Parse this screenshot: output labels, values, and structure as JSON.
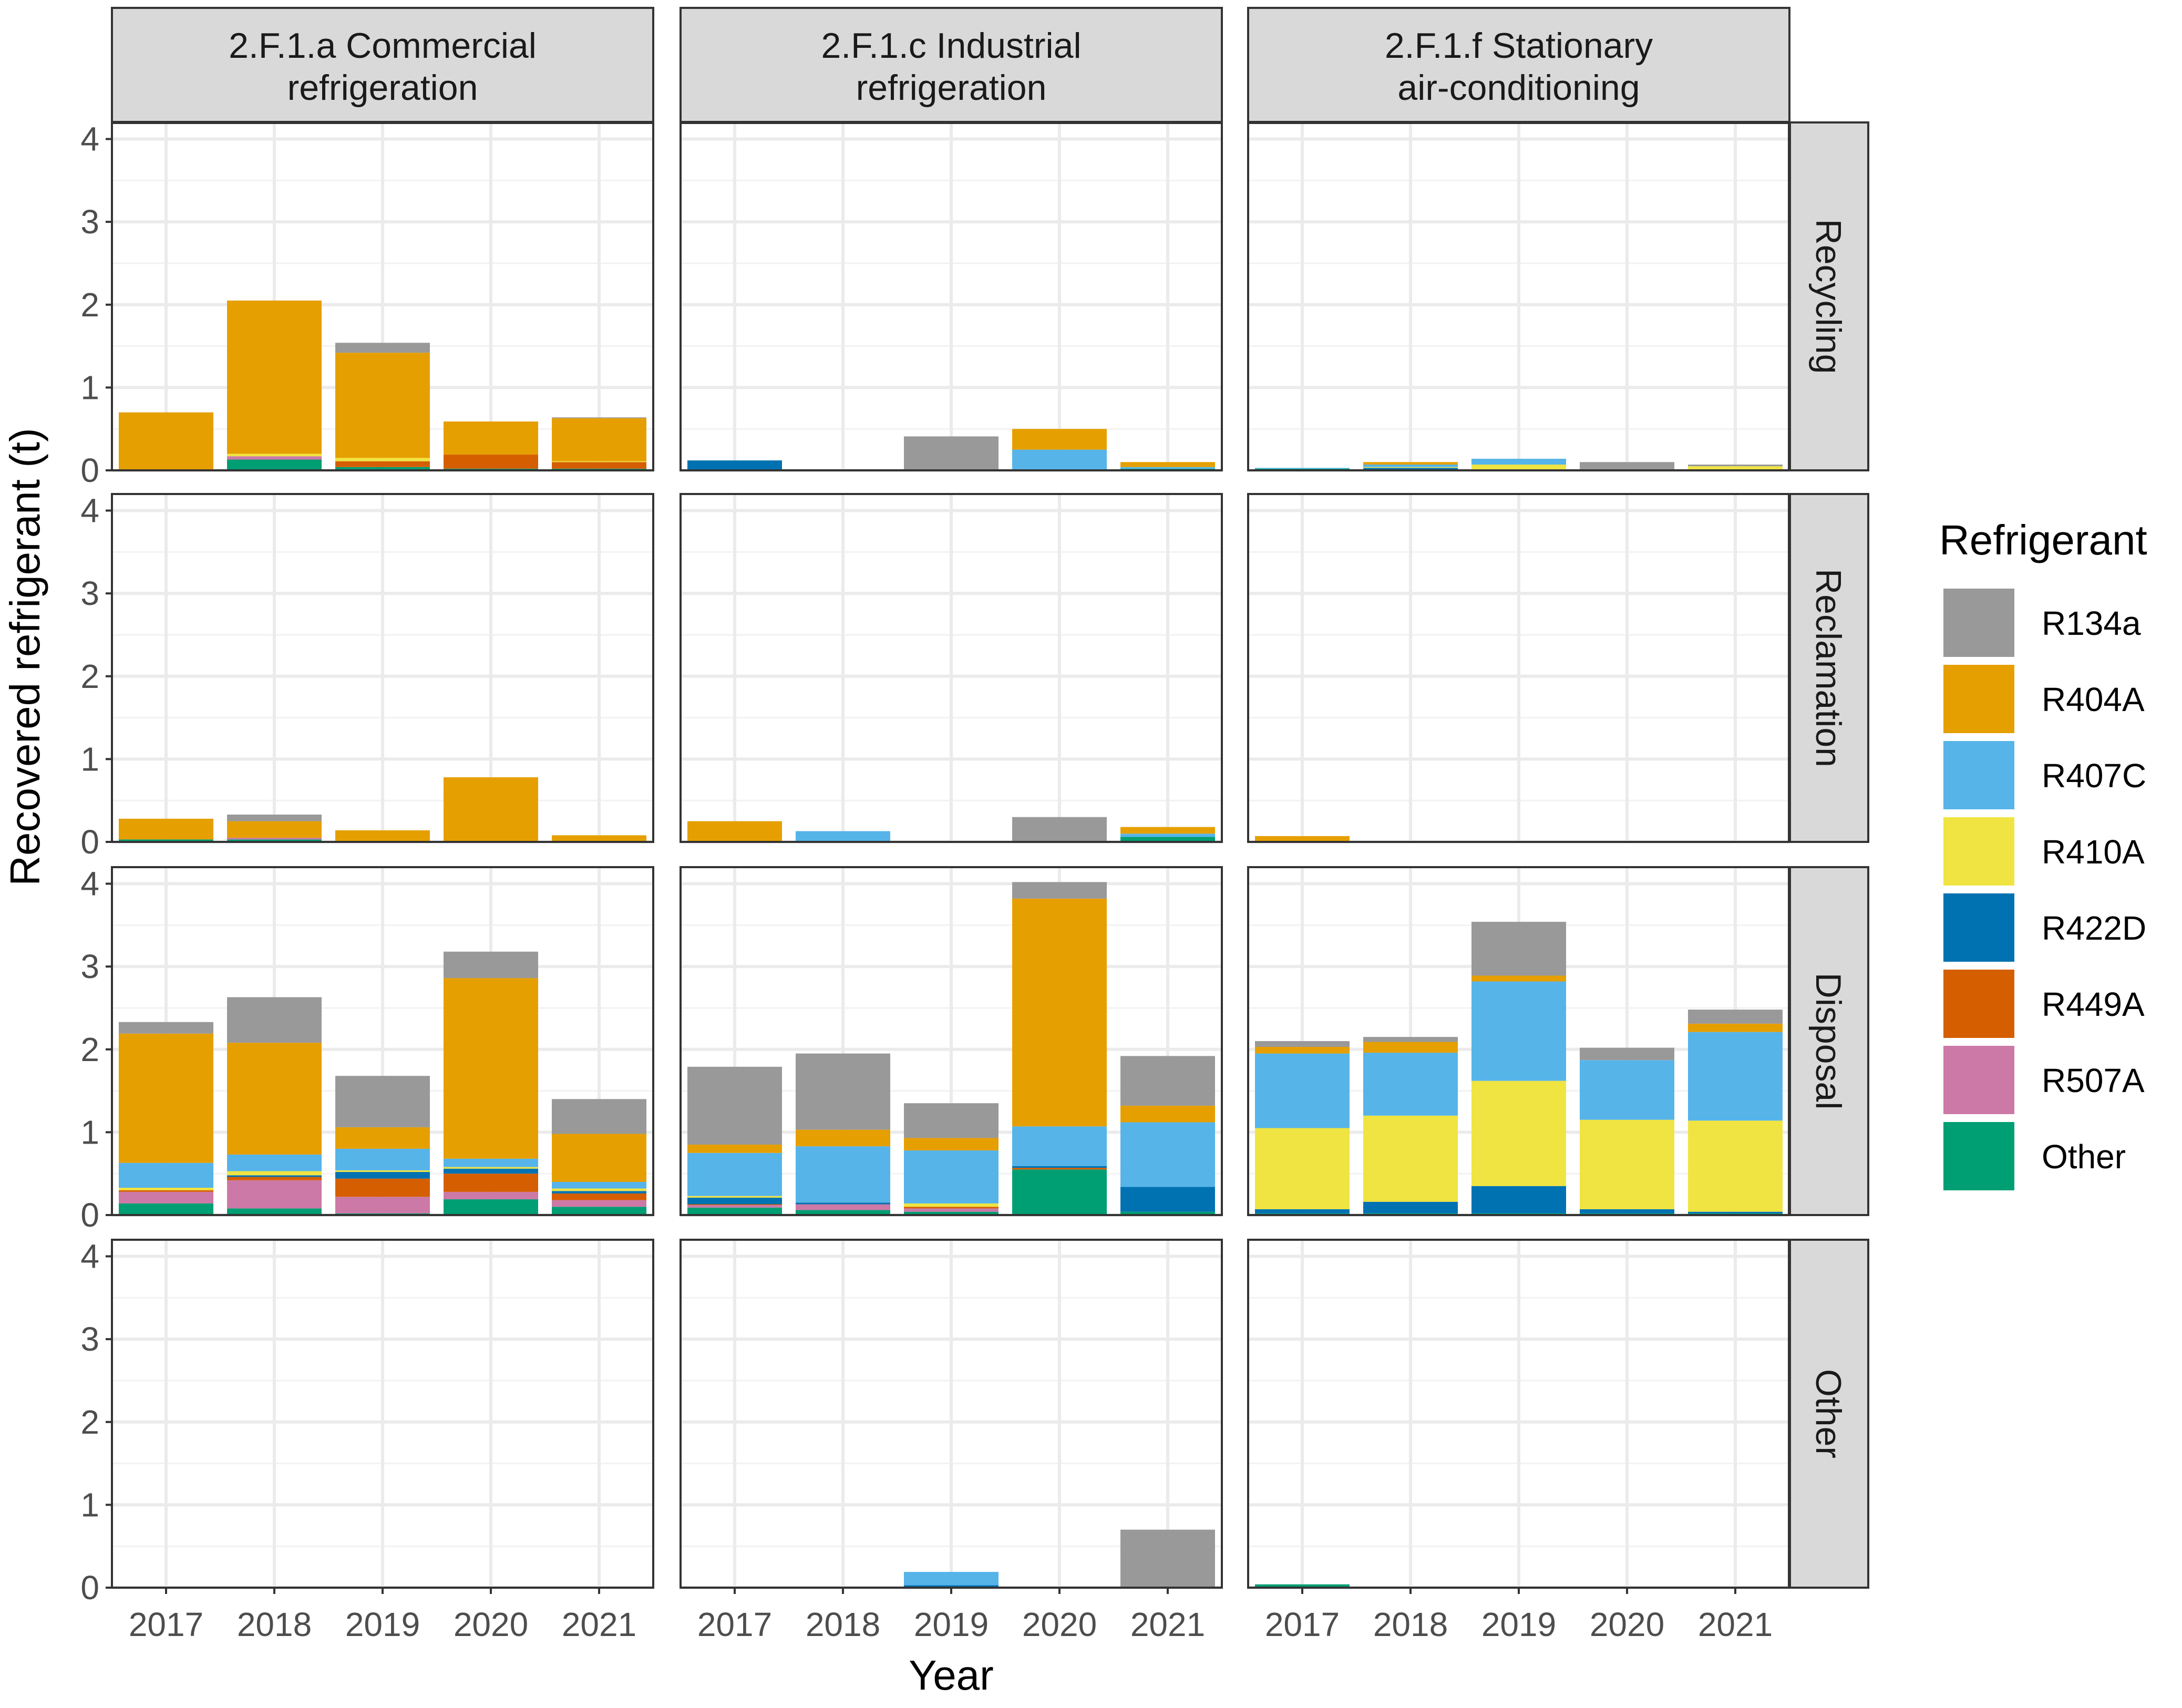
{
  "chart_data": {
    "type": "bar",
    "stacked": true,
    "xlabel": "Year",
    "ylabel": "Recovered refrigerant (t)",
    "ylim": [
      0,
      4.2
    ],
    "yticks": [
      "0",
      "1",
      "2",
      "3",
      "4"
    ],
    "years": [
      "2017",
      "2018",
      "2019",
      "2020",
      "2021"
    ],
    "columns": [
      [
        "2.F.1.a Commercial",
        "refrigeration"
      ],
      [
        "2.F.1.c Industrial",
        "refrigeration"
      ],
      [
        "2.F.1.f Stationary",
        "air-conditioning"
      ]
    ],
    "rows": [
      "Recycling",
      "Reclamation",
      "Disposal",
      "Other"
    ],
    "legend_title": "Refrigerant",
    "refrigerants": [
      "R134a",
      "R404A",
      "R407C",
      "R410A",
      "R422D",
      "R449A",
      "R507A",
      "Other"
    ],
    "colors": [
      "#999999",
      "#E69F00",
      "#56B4E9",
      "#F0E442",
      "#0072B2",
      "#D55E00",
      "#CC79A7",
      "#009E73"
    ],
    "stack_order_bottom_to_top": [
      "Other",
      "R507A",
      "R449A",
      "R422D",
      "R410A",
      "R407C",
      "R404A",
      "R134a"
    ],
    "series_order_note": "values arrays below follow the legend order: R134a, R404A, R407C, R410A, R422D, R449A, R507A, Other",
    "panels": [
      [
        [
          [
            0,
            0.7,
            0,
            0,
            0,
            0,
            0,
            0
          ],
          [
            0,
            1.85,
            0,
            0.03,
            0,
            0,
            0.04,
            0.13
          ],
          [
            0.12,
            1.27,
            0,
            0.04,
            0,
            0.07,
            0,
            0.04
          ],
          [
            0,
            0.4,
            0,
            0,
            0,
            0.17,
            0,
            0.02
          ],
          [
            0.01,
            0.52,
            0,
            0.01,
            0,
            0.08,
            0,
            0.02
          ]
        ],
        [
          [
            0,
            0.25,
            0,
            0,
            0,
            0,
            0,
            0.03
          ],
          [
            0.08,
            0.2,
            0,
            0,
            0,
            0,
            0.02,
            0.03
          ],
          [
            0,
            0.14,
            0,
            0,
            0,
            0,
            0,
            0
          ],
          [
            0,
            0.78,
            0,
            0,
            0,
            0,
            0,
            0
          ],
          [
            0,
            0.08,
            0,
            0,
            0,
            0,
            0,
            0
          ]
        ],
        [
          [
            0.14,
            1.56,
            0.3,
            0.03,
            0,
            0.02,
            0.14,
            0.14
          ],
          [
            0.55,
            1.35,
            0.2,
            0.05,
            0.02,
            0.04,
            0.34,
            0.08
          ],
          [
            0.62,
            0.26,
            0.26,
            0.02,
            0.08,
            0.22,
            0.2,
            0.02
          ],
          [
            0.32,
            2.18,
            0.1,
            0.02,
            0.06,
            0.22,
            0.09,
            0.19
          ],
          [
            0.42,
            0.58,
            0.08,
            0.03,
            0.03,
            0.08,
            0.08,
            0.1
          ]
        ],
        [
          [
            0,
            0,
            0,
            0,
            0,
            0,
            0,
            0
          ],
          [
            0,
            0,
            0,
            0,
            0,
            0,
            0,
            0
          ],
          [
            0,
            0,
            0,
            0,
            0,
            0,
            0,
            0
          ],
          [
            0,
            0,
            0,
            0,
            0,
            0,
            0,
            0
          ],
          [
            0,
            0,
            0,
            0,
            0,
            0,
            0,
            0
          ]
        ]
      ],
      [
        [
          [
            0,
            0,
            0,
            0,
            0.12,
            0,
            0,
            0
          ],
          [
            0,
            0,
            0,
            0,
            0,
            0,
            0,
            0
          ],
          [
            0.41,
            0,
            0,
            0,
            0,
            0,
            0,
            0
          ],
          [
            0,
            0.25,
            0.24,
            0,
            0,
            0,
            0,
            0.01
          ],
          [
            0,
            0.06,
            0.02,
            0,
            0,
            0,
            0,
            0.02
          ]
        ],
        [
          [
            0,
            0.25,
            0,
            0,
            0,
            0,
            0,
            0
          ],
          [
            0,
            0,
            0.13,
            0,
            0,
            0,
            0,
            0
          ],
          [
            0,
            0,
            0,
            0,
            0,
            0,
            0,
            0
          ],
          [
            0.3,
            0,
            0,
            0,
            0,
            0,
            0,
            0
          ],
          [
            0,
            0.08,
            0.04,
            0,
            0,
            0,
            0,
            0.06
          ]
        ],
        [
          [
            0.94,
            0.1,
            0.52,
            0.02,
            0.08,
            0.01,
            0.03,
            0.09
          ],
          [
            0.92,
            0.2,
            0.68,
            0,
            0.02,
            0,
            0.07,
            0.06
          ],
          [
            0.42,
            0.15,
            0.64,
            0.04,
            0,
            0.02,
            0.04,
            0.04
          ],
          [
            0.2,
            2.75,
            0.48,
            0,
            0.02,
            0.02,
            0,
            0.55
          ],
          [
            0.6,
            0.2,
            0.78,
            0,
            0.3,
            0,
            0,
            0.04
          ]
        ],
        [
          [
            0,
            0,
            0,
            0,
            0,
            0,
            0,
            0
          ],
          [
            0,
            0,
            0,
            0,
            0,
            0,
            0,
            0
          ],
          [
            0,
            0,
            0.16,
            0,
            0.03,
            0,
            0,
            0
          ],
          [
            0,
            0,
            0,
            0,
            0,
            0,
            0,
            0
          ],
          [
            0.7,
            0,
            0,
            0,
            0,
            0,
            0,
            0
          ]
        ]
      ],
      [
        [
          [
            0,
            0,
            0.01,
            0,
            0,
            0,
            0,
            0.02
          ],
          [
            0,
            0.03,
            0.03,
            0.01,
            0.03,
            0,
            0,
            0
          ],
          [
            0,
            0,
            0.07,
            0.06,
            0,
            0,
            0,
            0.01
          ],
          [
            0.1,
            0,
            0,
            0,
            0,
            0,
            0,
            0
          ],
          [
            0.02,
            0,
            0,
            0.04,
            0,
            0,
            0,
            0.01
          ]
        ],
        [
          [
            0,
            0.07,
            0,
            0,
            0,
            0,
            0,
            0
          ],
          [
            0,
            0.01,
            0,
            0,
            0,
            0,
            0,
            0
          ],
          [
            0,
            0,
            0,
            0,
            0,
            0,
            0,
            0
          ],
          [
            0,
            0,
            0,
            0,
            0,
            0,
            0,
            0
          ],
          [
            0,
            0,
            0,
            0,
            0,
            0,
            0,
            0
          ]
        ],
        [
          [
            0.07,
            0.08,
            0.9,
            0.98,
            0.05,
            0,
            0,
            0.02
          ],
          [
            0.06,
            0.13,
            0.76,
            1.04,
            0.14,
            0,
            0,
            0.02
          ],
          [
            0.65,
            0.07,
            1.2,
            1.27,
            0.33,
            0,
            0,
            0.02
          ],
          [
            0.15,
            0,
            0.72,
            1.08,
            0.05,
            0,
            0,
            0.02
          ],
          [
            0.17,
            0.1,
            1.07,
            1.1,
            0.02,
            0,
            0,
            0.02
          ]
        ],
        [
          [
            0,
            0,
            0,
            0,
            0,
            0,
            0,
            0.04
          ],
          [
            0,
            0,
            0,
            0,
            0,
            0,
            0,
            0
          ],
          [
            0,
            0,
            0,
            0.01,
            0,
            0,
            0,
            0
          ],
          [
            0,
            0,
            0,
            0,
            0,
            0,
            0,
            0
          ],
          [
            0,
            0,
            0,
            0,
            0,
            0,
            0,
            0
          ]
        ]
      ]
    ],
    "grid": true,
    "legend_position": "right"
  }
}
